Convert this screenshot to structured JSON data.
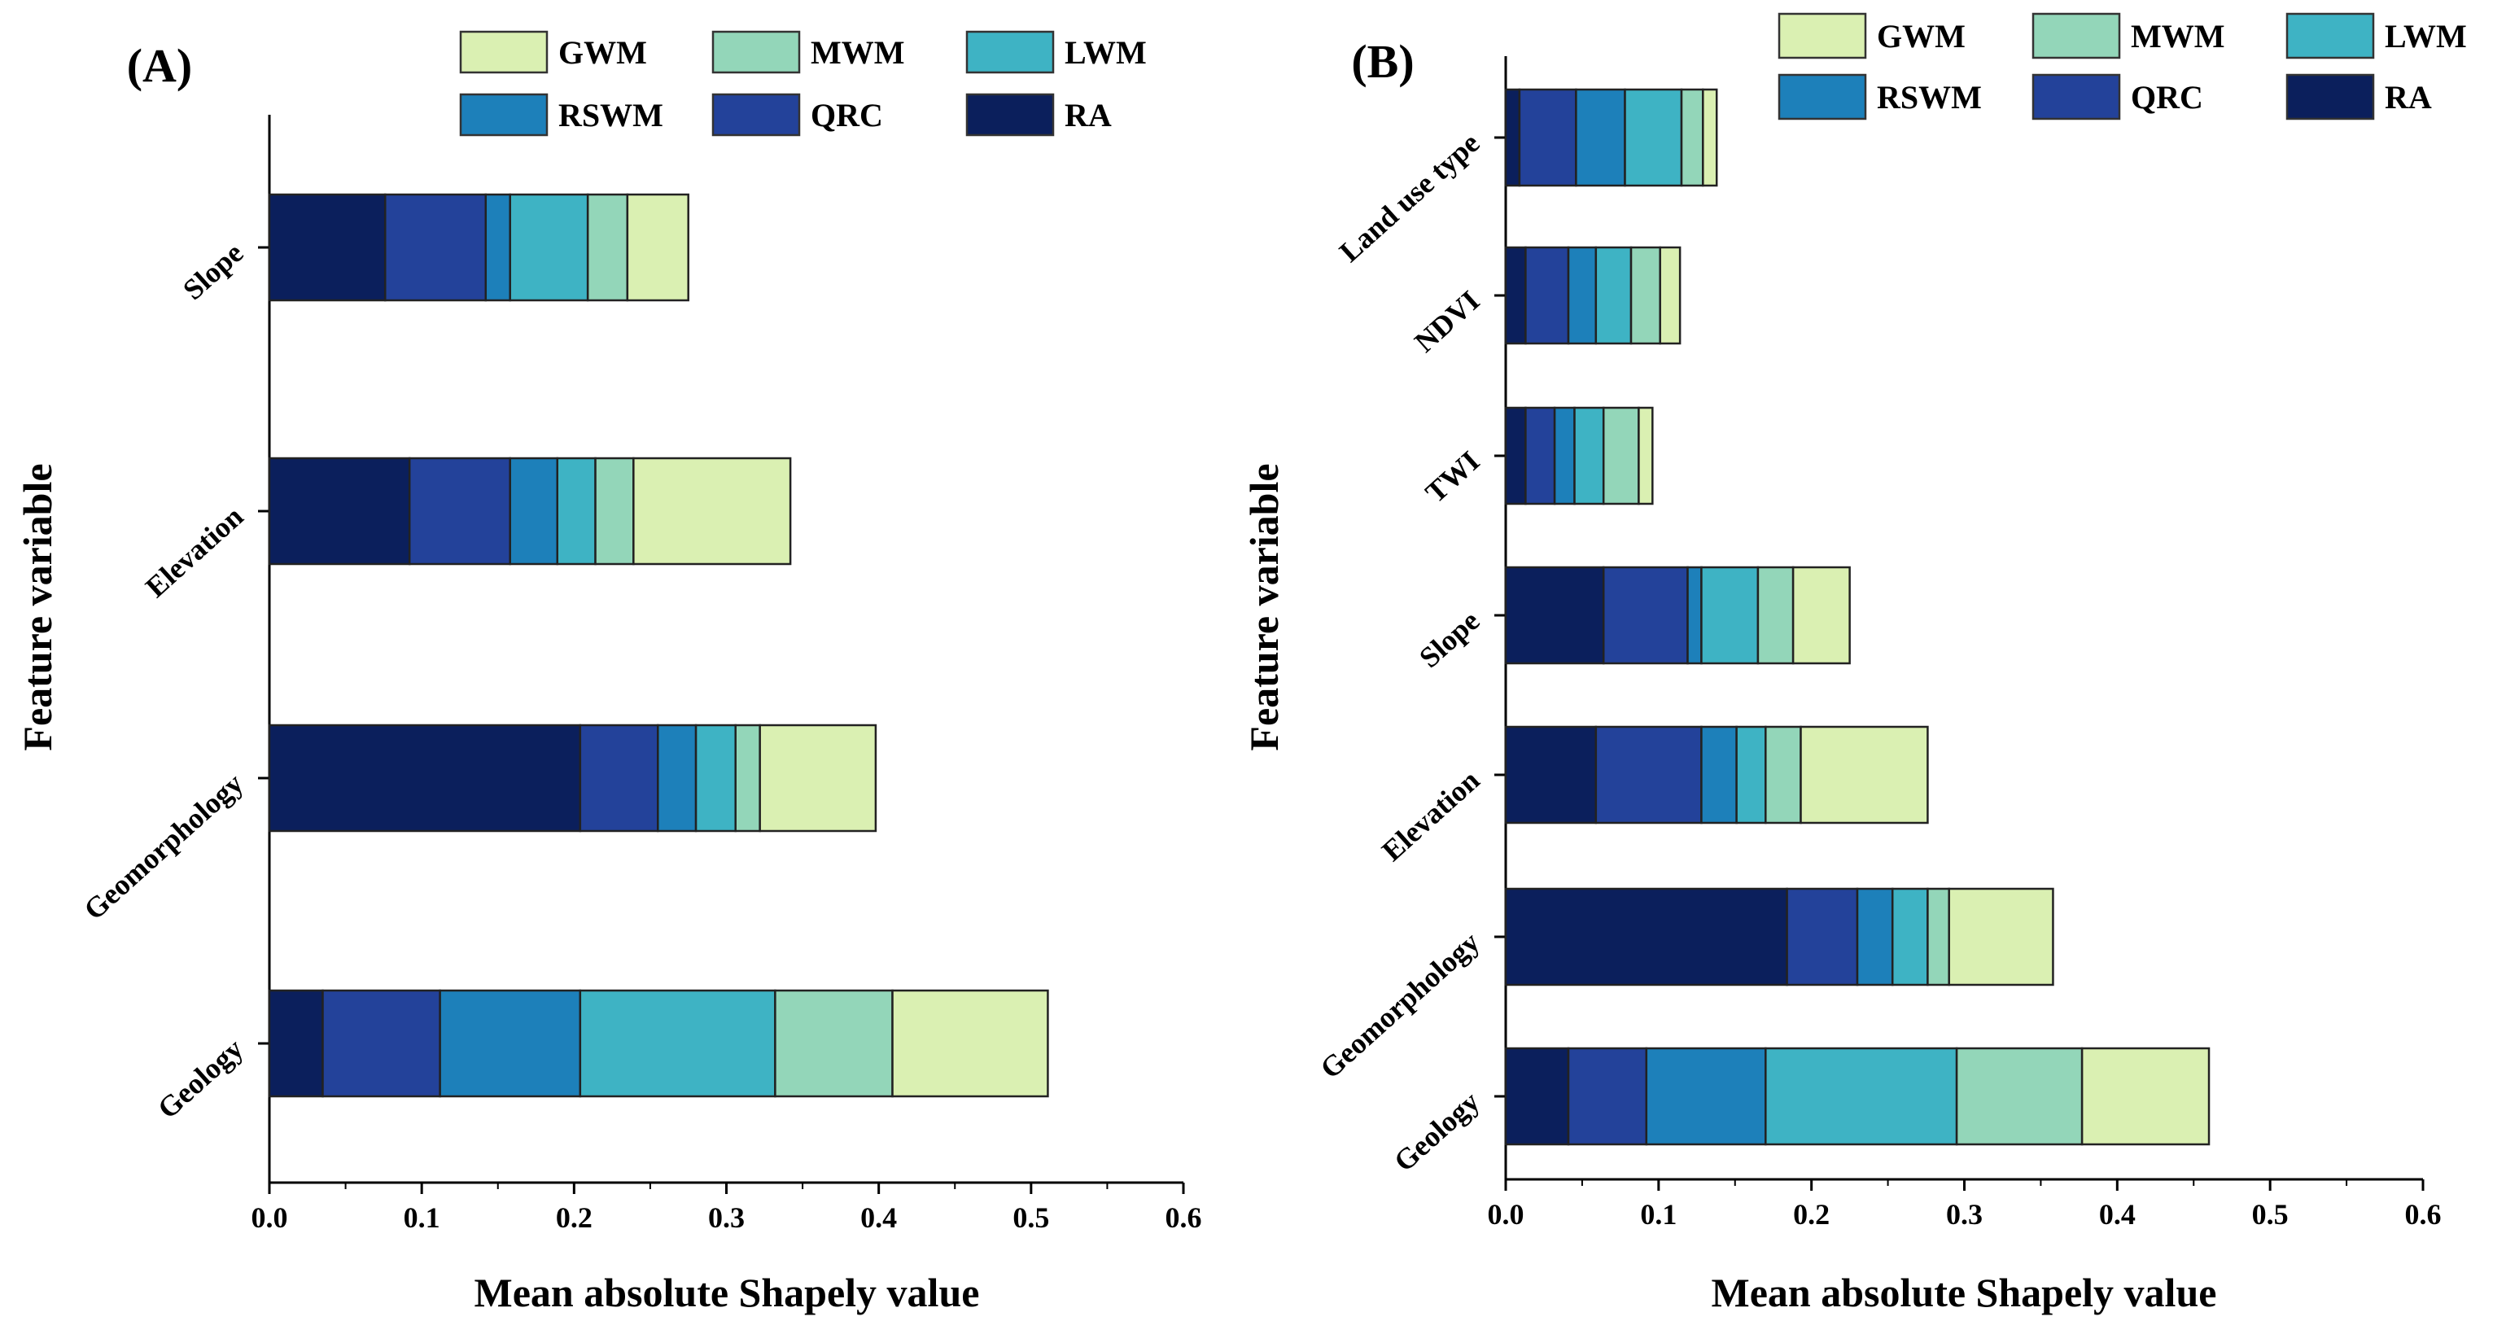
{
  "chart_data": [
    {
      "type": "bar",
      "orientation": "horizontal",
      "stacked": true,
      "title": "(A)",
      "xlabel": "Mean absolute Shapely value",
      "ylabel": "Feature variable",
      "xlim": [
        0,
        0.6
      ],
      "xticks": [
        "0.0",
        "0.1",
        "0.2",
        "0.3",
        "0.4",
        "0.5",
        "0.6"
      ],
      "legend_position": "top",
      "categories": [
        "Slope",
        "Elevation",
        "Geomorphology",
        "Geology"
      ],
      "series": [
        {
          "name": "RA",
          "values": [
            0.076,
            0.092,
            0.204,
            0.035
          ]
        },
        {
          "name": "QRC",
          "values": [
            0.066,
            0.066,
            0.051,
            0.077
          ]
        },
        {
          "name": "RSWM",
          "values": [
            0.016,
            0.031,
            0.025,
            0.092
          ]
        },
        {
          "name": "LWM",
          "values": [
            0.051,
            0.025,
            0.026,
            0.128
          ]
        },
        {
          "name": "MWM",
          "values": [
            0.026,
            0.025,
            0.016,
            0.077
          ]
        },
        {
          "name": "GWM",
          "values": [
            0.04,
            0.103,
            0.076,
            0.102
          ]
        }
      ]
    },
    {
      "type": "bar",
      "orientation": "horizontal",
      "stacked": true,
      "title": "(B)",
      "xlabel": "Mean absolute Shapely value",
      "ylabel": "Feature variable",
      "xlim": [
        0,
        0.6
      ],
      "xticks": [
        "0.0",
        "0.1",
        "0.2",
        "0.3",
        "0.4",
        "0.5",
        "0.6"
      ],
      "legend_position": "top",
      "categories": [
        "Land use type",
        "NDVI",
        "TWI",
        "Slope",
        "Elevation",
        "Geomorphology",
        "Geology"
      ],
      "series": [
        {
          "name": "RA",
          "values": [
            0.009,
            0.013,
            0.013,
            0.064,
            0.059,
            0.184,
            0.041
          ]
        },
        {
          "name": "QRC",
          "values": [
            0.037,
            0.028,
            0.019,
            0.055,
            0.069,
            0.046,
            0.051
          ]
        },
        {
          "name": "RSWM",
          "values": [
            0.032,
            0.018,
            0.013,
            0.009,
            0.023,
            0.023,
            0.078
          ]
        },
        {
          "name": "LWM",
          "values": [
            0.037,
            0.023,
            0.019,
            0.037,
            0.019,
            0.023,
            0.125
          ]
        },
        {
          "name": "MWM",
          "values": [
            0.014,
            0.019,
            0.023,
            0.023,
            0.023,
            0.014,
            0.082
          ]
        },
        {
          "name": "GWM",
          "values": [
            0.009,
            0.013,
            0.009,
            0.037,
            0.083,
            0.068,
            0.083
          ]
        }
      ]
    }
  ],
  "colors": {
    "RA": "#0b1f5c",
    "QRC": "#23429a",
    "RSWM": "#1d80ba",
    "LWM": "#3eb3c4",
    "MWM": "#93d6b9",
    "GWM": "#daf0b2"
  }
}
